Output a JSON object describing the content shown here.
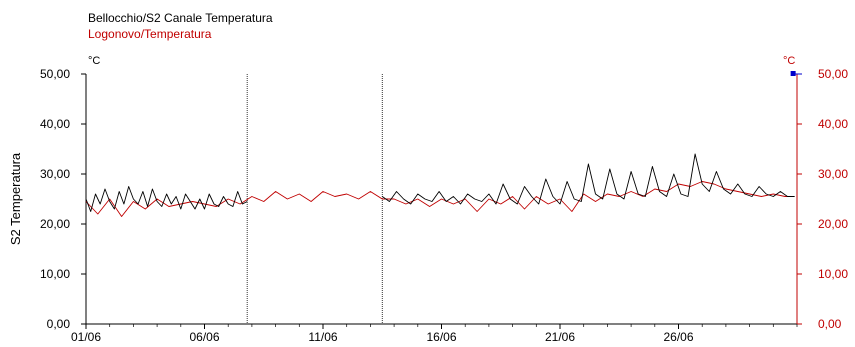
{
  "legend": {
    "series1_label": "Bellocchio/S2 Canale Temperatura",
    "series2_label": "Logonovo/Temperatura"
  },
  "colors": {
    "series1": "#000000",
    "series2": "#c00000",
    "axis_left": "#000000",
    "axis_right": "#c00000",
    "marker": "#0000cc"
  },
  "chart_data": {
    "type": "line",
    "ylabel_left": "S2 Temperatura",
    "unit_left": "°C",
    "unit_right": "°C",
    "ylim": [
      0,
      50
    ],
    "xlim_days": [
      1,
      31
    ],
    "yticks": [
      "0,00",
      "10,00",
      "20,00",
      "30,00",
      "40,00",
      "50,00"
    ],
    "yticks_right": [
      "0,00",
      "10,00",
      "20,00",
      "30,00",
      "40,00",
      "50,00"
    ],
    "xticks": [
      {
        "label": "01/06",
        "day": 1
      },
      {
        "label": "06/06",
        "day": 6
      },
      {
        "label": "11/06",
        "day": 11
      },
      {
        "label": "16/06",
        "day": 16
      },
      {
        "label": "21/06",
        "day": 21
      },
      {
        "label": "26/06",
        "day": 26
      }
    ],
    "vertical_markers_days": [
      7.8,
      13.5
    ],
    "series": [
      {
        "name": "Bellocchio/S2 Canale Temperatura",
        "color": "#000000",
        "segments": [
          {
            "x": [
              1.0,
              1.2,
              1.4,
              1.6,
              1.8,
              2.0,
              2.2,
              2.4,
              2.6,
              2.8,
              3.0,
              3.2,
              3.4,
              3.6,
              3.8,
              4.0,
              4.2,
              4.4,
              4.6,
              4.8,
              5.0,
              5.2,
              5.4,
              5.6,
              5.8,
              6.0,
              6.2,
              6.4,
              6.6,
              6.8,
              7.0,
              7.2,
              7.4,
              7.6,
              7.8
            ],
            "y": [
              25.0,
              22.5,
              26.0,
              24.0,
              27.0,
              24.5,
              23.0,
              26.5,
              24.0,
              27.5,
              25.0,
              24.0,
              26.5,
              23.5,
              27.0,
              24.5,
              23.5,
              26.0,
              24.0,
              25.5,
              23.0,
              26.0,
              24.5,
              23.0,
              25.0,
              23.0,
              26.0,
              24.0,
              23.5,
              25.5,
              24.0,
              23.5,
              26.5,
              24.0,
              24.5
            ]
          },
          {
            "x": [
              13.5,
              13.8,
              14.1,
              14.4,
              14.7,
              15.0,
              15.3,
              15.6,
              15.9,
              16.2,
              16.5,
              16.8,
              17.1,
              17.4,
              17.7,
              18.0,
              18.3,
              18.6,
              18.9,
              19.2,
              19.5,
              19.8,
              20.1,
              20.4,
              20.7,
              21.0,
              21.3,
              21.6,
              21.9,
              22.2,
              22.5,
              22.8,
              23.1,
              23.4,
              23.7,
              24.0,
              24.3,
              24.6,
              24.9,
              25.2,
              25.5,
              25.8,
              26.1,
              26.4,
              26.7,
              27.0,
              27.3,
              27.6,
              27.9,
              28.2,
              28.5,
              28.8,
              29.1,
              29.4,
              29.7,
              30.0,
              30.3,
              30.6,
              30.9
            ],
            "y": [
              25.5,
              24.5,
              26.5,
              25.0,
              24.0,
              26.0,
              25.0,
              24.5,
              26.5,
              24.5,
              25.5,
              24.0,
              26.0,
              25.0,
              24.5,
              26.0,
              24.0,
              28.0,
              25.0,
              24.0,
              27.5,
              25.5,
              24.0,
              29.0,
              25.5,
              24.0,
              28.5,
              25.0,
              24.5,
              32.0,
              26.0,
              25.0,
              31.0,
              26.0,
              25.0,
              30.5,
              26.0,
              25.5,
              31.5,
              26.5,
              25.5,
              30.0,
              26.0,
              25.5,
              34.0,
              28.0,
              26.5,
              30.5,
              27.0,
              26.0,
              28.0,
              26.0,
              25.5,
              27.5,
              26.0,
              25.5,
              26.5,
              25.5,
              25.5
            ]
          }
        ]
      },
      {
        "name": "Logonovo/Temperatura",
        "color": "#c00000",
        "segments": [
          {
            "x": [
              1.0,
              1.5,
              2.0,
              2.5,
              3.0,
              3.5,
              4.0,
              4.5,
              5.0,
              5.5,
              6.0,
              6.5,
              7.0,
              7.5,
              8.0,
              8.5,
              9.0,
              9.5,
              10.0,
              10.5,
              11.0,
              11.5,
              12.0,
              12.5,
              13.0,
              13.5,
              14.0,
              14.5,
              15.0,
              15.5,
              16.0,
              16.5,
              17.0,
              17.5,
              18.0,
              18.5,
              19.0,
              19.5,
              20.0,
              20.5,
              21.0,
              21.5,
              22.0,
              22.5,
              23.0,
              23.5,
              24.0,
              24.5,
              25.0,
              25.5,
              26.0,
              26.5,
              27.0,
              27.5,
              28.0,
              28.5,
              29.0,
              29.5,
              30.0,
              30.5,
              30.9
            ],
            "y": [
              24.5,
              22.0,
              25.0,
              21.5,
              24.5,
              23.0,
              25.0,
              23.5,
              24.0,
              24.5,
              24.0,
              23.5,
              25.0,
              24.0,
              25.5,
              24.5,
              26.5,
              25.0,
              26.0,
              24.5,
              26.5,
              25.5,
              26.0,
              25.0,
              26.5,
              25.0,
              25.0,
              24.0,
              25.0,
              23.5,
              25.0,
              24.0,
              25.0,
              22.5,
              25.0,
              24.0,
              25.5,
              23.0,
              25.5,
              24.0,
              25.0,
              22.5,
              26.0,
              24.5,
              26.0,
              25.5,
              26.5,
              25.5,
              27.0,
              26.5,
              28.0,
              27.5,
              28.5,
              28.0,
              27.0,
              26.5,
              26.0,
              25.5,
              26.0,
              25.5,
              25.5
            ]
          }
        ]
      }
    ],
    "top_marker_day": 30.9
  }
}
